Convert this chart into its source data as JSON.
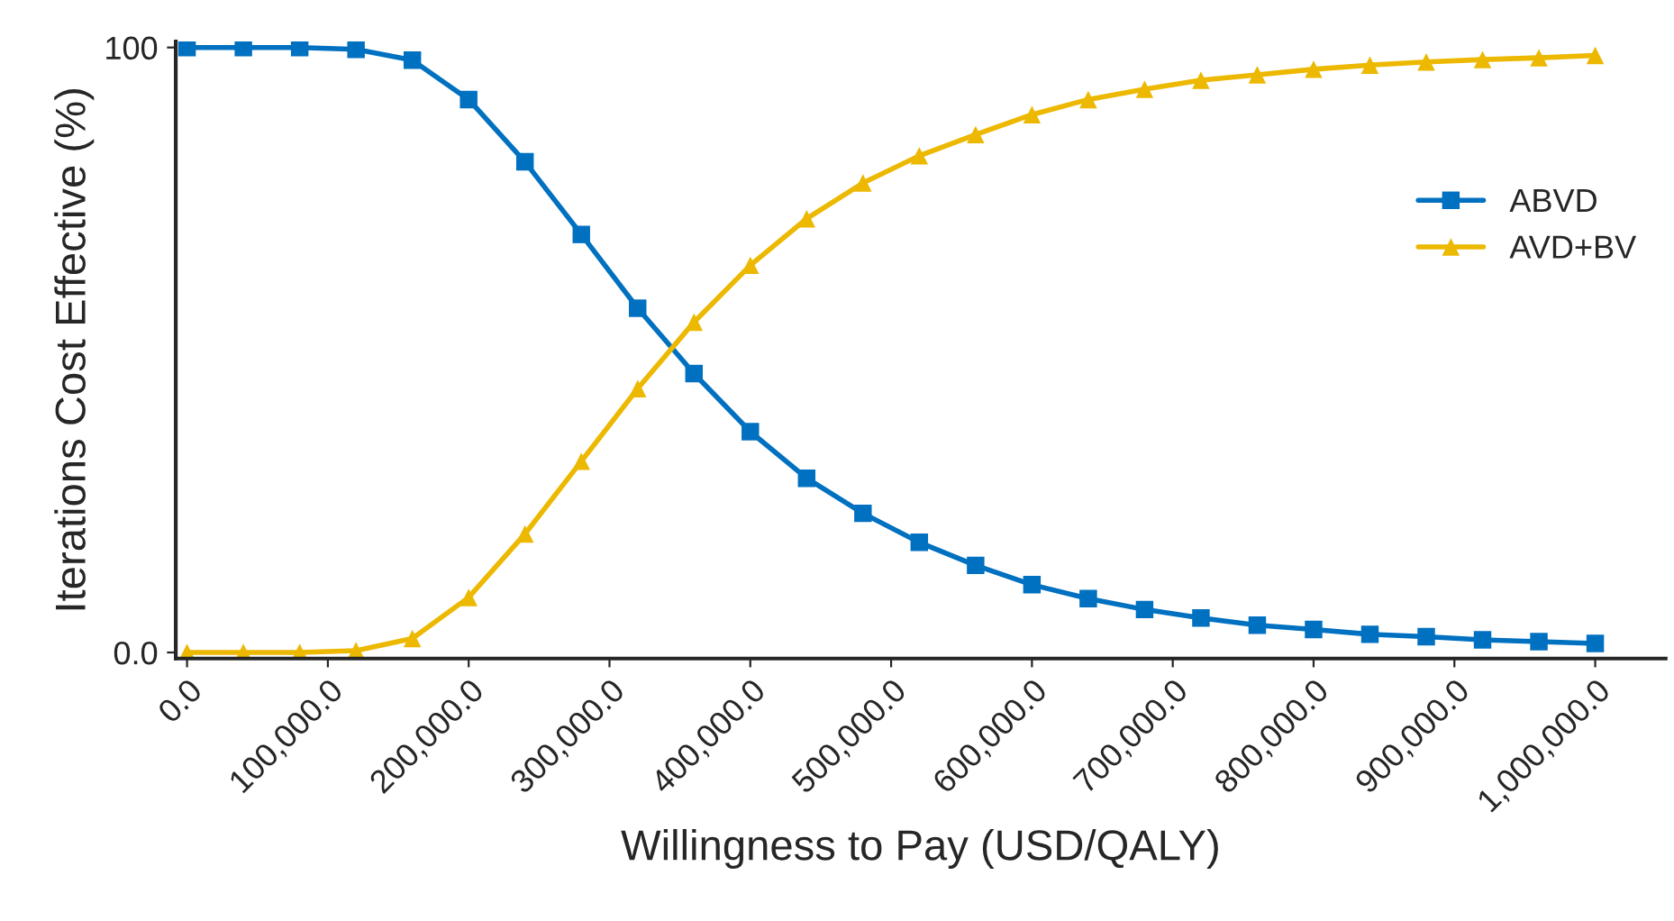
{
  "chart_data": {
    "type": "line",
    "xlabel": "Willingness to Pay (USD/QALY)",
    "ylabel": "Iterations Cost Effective (%)",
    "x": [
      0,
      40000,
      80000,
      120000,
      160000,
      200000,
      240000,
      280000,
      320000,
      360000,
      400000,
      440000,
      480000,
      520000,
      560000,
      600000,
      640000,
      680000,
      720000,
      760000,
      800000,
      840000,
      880000,
      920000,
      960000,
      1000000
    ],
    "series": [
      {
        "name": "ABVD",
        "color": "#0070c0",
        "marker": "square",
        "values": [
          100,
          100,
          100,
          99.7,
          97.9,
          91.4,
          81.1,
          69.1,
          56.9,
          46.1,
          36.5,
          28.8,
          23.0,
          18.2,
          14.4,
          11.2,
          8.9,
          7.1,
          5.7,
          4.5,
          3.8,
          3.0,
          2.6,
          2.1,
          1.8,
          1.5
        ]
      },
      {
        "name": "AVD+BV",
        "color": "#ecb800",
        "marker": "triangle",
        "values": [
          0,
          0,
          0,
          0.3,
          2.3,
          9.1,
          19.6,
          31.6,
          43.6,
          54.6,
          64.0,
          71.7,
          77.6,
          82.1,
          85.6,
          88.9,
          91.4,
          93.1,
          94.6,
          95.5,
          96.4,
          97.1,
          97.6,
          98.0,
          98.3,
          98.7
        ]
      }
    ],
    "xlim": [
      -8000,
      1050000
    ],
    "ylim": [
      -1,
      101
    ],
    "xticks": [
      {
        "value": 0,
        "label": "0.0"
      },
      {
        "value": 100000,
        "label": "100,000.0"
      },
      {
        "value": 200000,
        "label": "200,000.0"
      },
      {
        "value": 300000,
        "label": "300,000.0"
      },
      {
        "value": 400000,
        "label": "400,000.0"
      },
      {
        "value": 500000,
        "label": "500,000.0"
      },
      {
        "value": 600000,
        "label": "600,000.0"
      },
      {
        "value": 700000,
        "label": "700,000.0"
      },
      {
        "value": 800000,
        "label": "800,000.0"
      },
      {
        "value": 900000,
        "label": "900,000.0"
      },
      {
        "value": 1000000,
        "label": "1,000,000.0"
      }
    ],
    "yticks": [
      {
        "value": 0,
        "label": "0.0"
      },
      100
    ],
    "grid": false,
    "legend": "right",
    "line_style": "solid"
  }
}
